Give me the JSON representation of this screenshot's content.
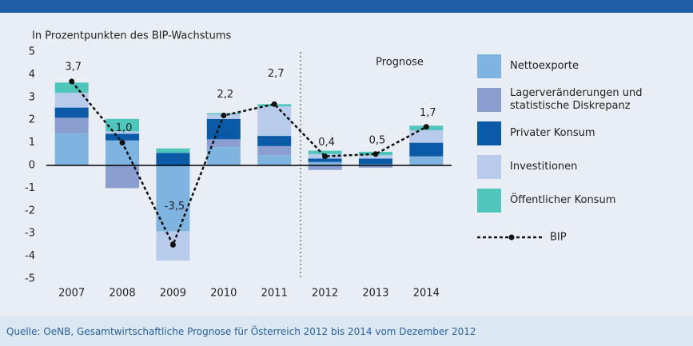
{
  "chart_data": {
    "type": "bar",
    "y_label": "In Prozentpunkten des BIP-Wachstums",
    "annotation": "Prognose",
    "source": "Quelle: OeNB, Gesamtwirtschaftliche Prognose für Österreich 2012 bis 2014 vom Dezember 2012",
    "categories": [
      "2007",
      "2008",
      "2009",
      "2010",
      "2011",
      "2012",
      "2013",
      "2014"
    ],
    "stacked": true,
    "series": [
      {
        "name": "Nettoexporte",
        "color": "#7fb4e0",
        "values": [
          1.4,
          1.1,
          -2.9,
          0.8,
          0.45,
          0.15,
          0.05,
          0.4
        ]
      },
      {
        "name": "Lagerveränderungen und statistische Diskrepanz",
        "color": "#8a9fd0",
        "values": [
          0.7,
          -1.0,
          0.0,
          0.35,
          0.4,
          -0.2,
          -0.1,
          0.0
        ]
      },
      {
        "name": "Privater Konsum",
        "color": "#0b5aa8",
        "values": [
          0.45,
          0.3,
          0.55,
          0.9,
          0.45,
          0.15,
          0.25,
          0.6
        ]
      },
      {
        "name": "Investitionen",
        "color": "#b9cbea",
        "values": [
          0.65,
          0.1,
          -1.3,
          0.2,
          1.3,
          0.2,
          0.15,
          0.55
        ]
      },
      {
        "name": "Öffentlicher Konsum",
        "color": "#4fc6bc",
        "values": [
          0.45,
          0.55,
          0.2,
          0.05,
          0.1,
          0.15,
          0.15,
          0.2
        ]
      }
    ],
    "line": {
      "name": "BIP",
      "type": "line",
      "color": "#111111",
      "values": [
        3.7,
        1.0,
        -3.5,
        2.2,
        2.7,
        0.4,
        0.5,
        1.7
      ],
      "value_labels": [
        "3,7",
        "1,0",
        "-3,5",
        "2,2",
        "2,7",
        "0,4",
        "0,5",
        "1,7"
      ]
    },
    "ylim": [
      -5,
      5
    ],
    "yticks": [
      5,
      4,
      3,
      2,
      1,
      0,
      -1,
      -2,
      -3,
      -4,
      -5
    ]
  }
}
